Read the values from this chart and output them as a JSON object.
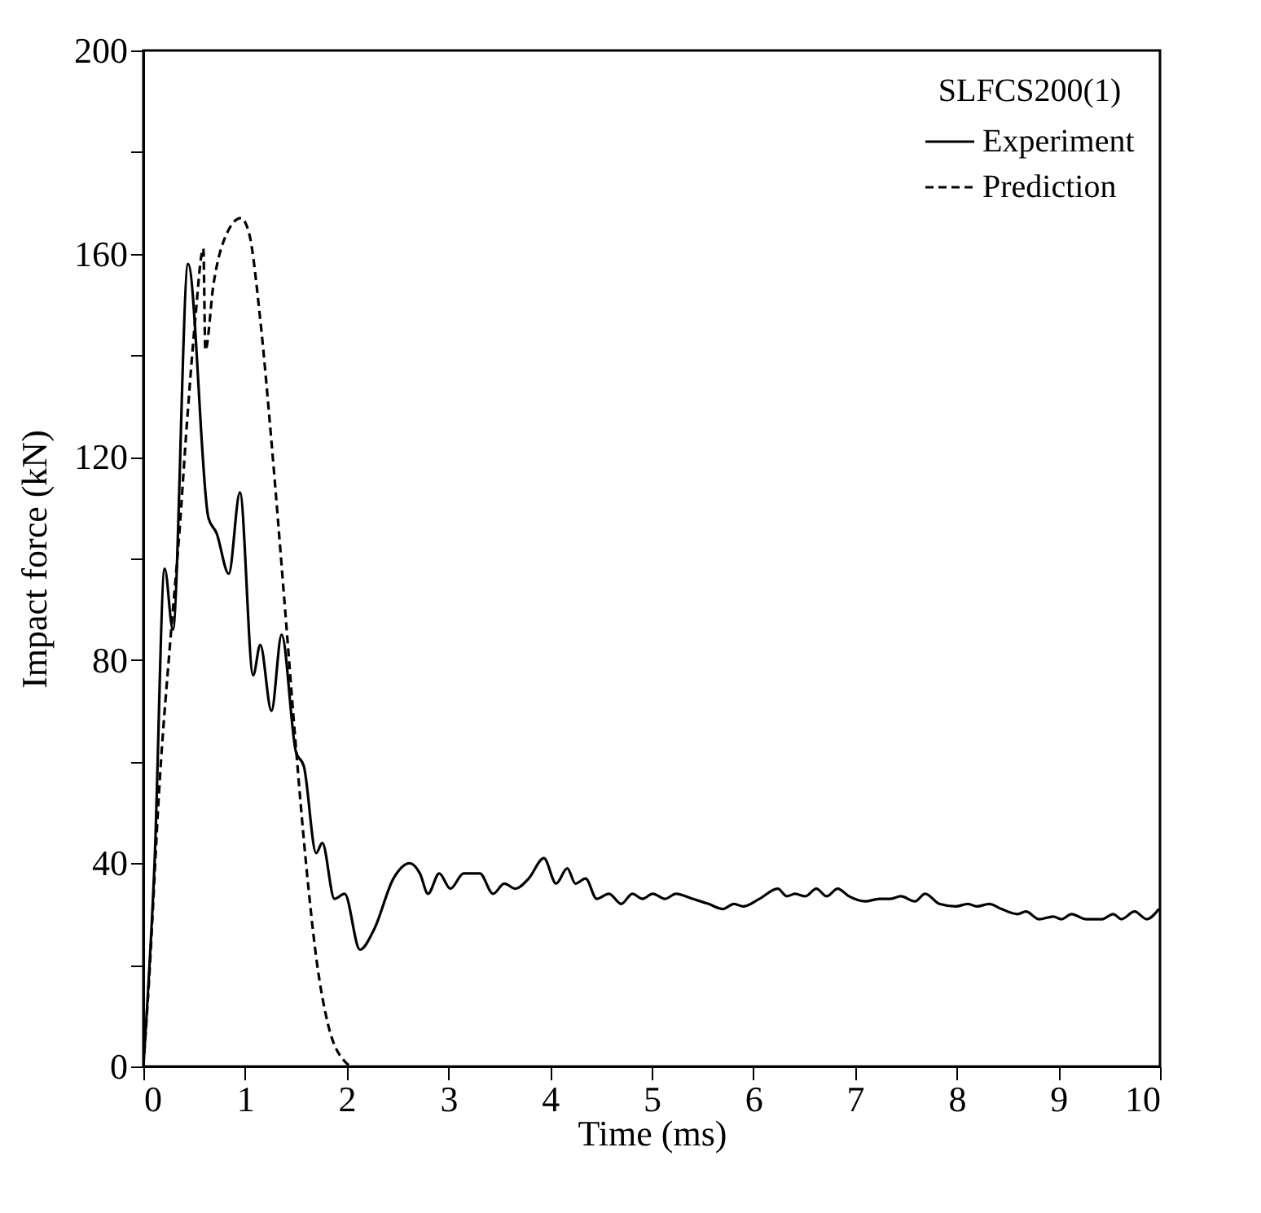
{
  "chart_data": {
    "type": "line",
    "xlabel": "Time (ms)",
    "ylabel": "Impact force (kN)",
    "legend_title": "SLFCS200(1)",
    "legend": "top right",
    "grid": false,
    "xlim": [
      0,
      10
    ],
    "xticks": [
      0,
      1,
      2,
      3,
      4,
      5,
      6,
      7,
      8,
      9,
      10
    ],
    "ylim": [
      0,
      200
    ],
    "yticks": [
      0,
      {
        "value": 20,
        "label": null
      },
      40,
      {
        "value": 60,
        "label": null
      },
      80,
      {
        "value": 100,
        "label": null
      },
      120,
      {
        "value": 140,
        "label": null
      },
      160,
      {
        "value": 180,
        "label": null
      },
      200
    ],
    "series": [
      {
        "name": "Experiment",
        "color": "#000000",
        "line_style": "solid",
        "x": [
          0,
          0.11,
          0.21,
          0.29,
          0.44,
          0.64,
          0.72,
          0.84,
          0.95,
          1.08,
          1.15,
          1.26,
          1.36,
          1.5,
          1.58,
          1.7,
          1.76,
          1.88,
          1.98,
          2.13,
          2.27,
          2.46,
          2.62,
          2.72,
          2.8,
          2.91,
          3.02,
          3.15,
          3.31,
          3.44,
          3.55,
          3.66,
          3.79,
          3.94,
          4.06,
          4.17,
          4.25,
          4.35,
          4.46,
          4.58,
          4.7,
          4.81,
          4.91,
          5.01,
          5.13,
          5.24,
          5.4,
          5.56,
          5.7,
          5.81,
          5.9,
          6.06,
          6.24,
          6.33,
          6.41,
          6.51,
          6.62,
          6.72,
          6.83,
          6.94,
          7.1,
          7.24,
          7.35,
          7.45,
          7.59,
          7.69,
          7.83,
          7.99,
          8.11,
          8.2,
          8.32,
          8.44,
          8.6,
          8.68,
          8.81,
          8.95,
          9.03,
          9.13,
          9.27,
          9.43,
          9.54,
          9.62,
          9.75,
          9.87,
          9.99
        ],
        "values": [
          0,
          40,
          98,
          86,
          158,
          108,
          105,
          97,
          113,
          77,
          83,
          70,
          85,
          62,
          59,
          42,
          44,
          33,
          34,
          23,
          27,
          37,
          40,
          38,
          34,
          38,
          35,
          38,
          38,
          34,
          36,
          35,
          37,
          41,
          36,
          39,
          36,
          37,
          33,
          34,
          32,
          34,
          33,
          34,
          33,
          34,
          33,
          32,
          31,
          32,
          31.5,
          33,
          35,
          33.5,
          34,
          33.5,
          35,
          33.5,
          35,
          33.5,
          32.5,
          33,
          33,
          33.5,
          32.5,
          34,
          32,
          31.5,
          32,
          31.5,
          32,
          31,
          30,
          30.5,
          29,
          29.5,
          29,
          30,
          29,
          29,
          30,
          29,
          30.5,
          29,
          31
        ]
      },
      {
        "name": "Prediction",
        "color": "#000000",
        "line_style": "dashed",
        "x": [
          0,
          0.05,
          0.16,
          0.27,
          0.35,
          0.43,
          0.51,
          0.59,
          0.61,
          0.69,
          0.8,
          0.96,
          1.04,
          1.15,
          1.26,
          1.39,
          1.5,
          1.6,
          1.71,
          1.82,
          1.98,
          2.04
        ],
        "values": [
          0,
          15,
          56,
          85,
          104,
          127,
          147,
          161,
          141,
          154,
          163,
          167,
          164,
          147,
          123,
          91,
          63,
          40,
          20,
          8,
          1,
          0
        ]
      }
    ]
  }
}
